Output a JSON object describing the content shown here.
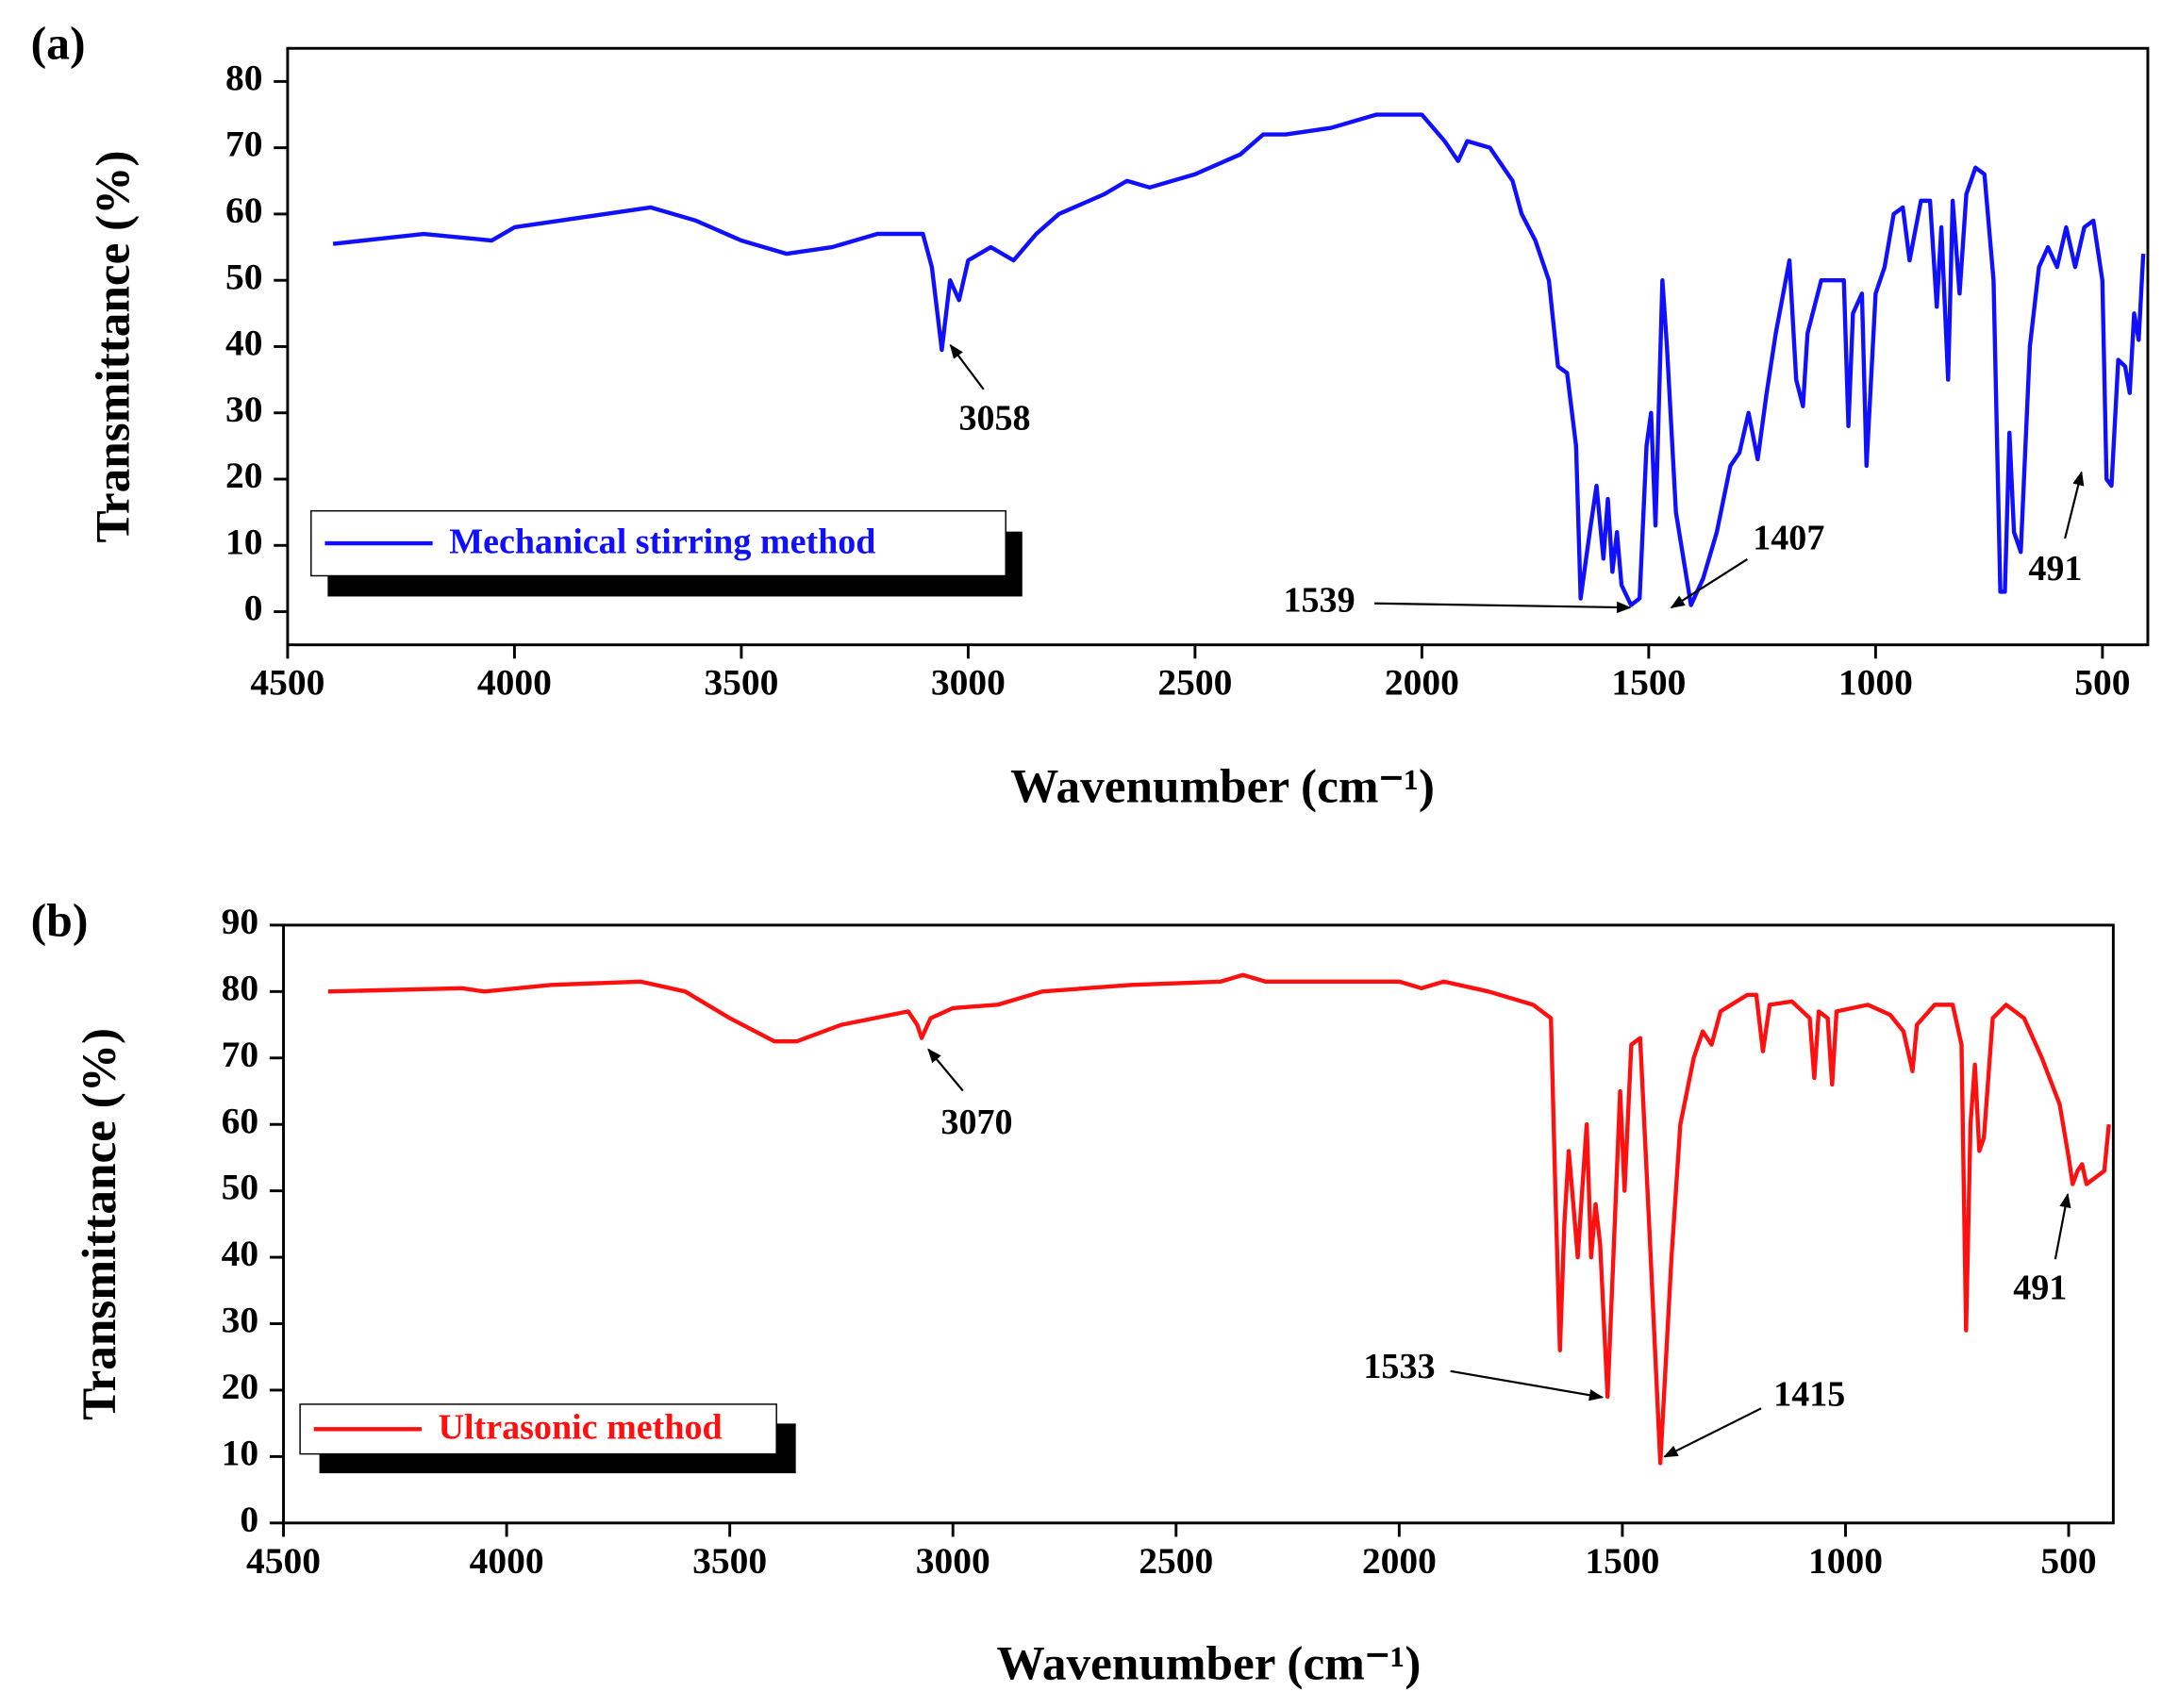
{
  "chart_data": [
    {
      "type": "line",
      "panel_label": "(a)",
      "x_label": "Wavenumber (cm⁻¹)",
      "y_label": "Transmittance (%)",
      "xlim": [
        4500,
        400
      ],
      "ylim": [
        -5,
        85
      ],
      "xticks": [
        4500,
        4000,
        3500,
        3000,
        2500,
        2000,
        1500,
        1000,
        500
      ],
      "yticks": [
        0,
        10,
        20,
        30,
        40,
        50,
        60,
        70,
        80
      ],
      "annotations": [
        "3058",
        "1539",
        "1407",
        "491"
      ],
      "x": [
        4400,
        4200,
        4050,
        4000,
        3800,
        3700,
        3600,
        3500,
        3400,
        3300,
        3200,
        3100,
        3080,
        3058,
        3040,
        3020,
        3000,
        2950,
        2900,
        2850,
        2800,
        2700,
        2650,
        2600,
        2500,
        2400,
        2350,
        2300,
        2200,
        2100,
        2000,
        1950,
        1920,
        1900,
        1850,
        1800,
        1780,
        1750,
        1720,
        1700,
        1680,
        1660,
        1650,
        1630,
        1615,
        1600,
        1590,
        1580,
        1570,
        1560,
        1539,
        1520,
        1505,
        1495,
        1485,
        1470,
        1460,
        1440,
        1407,
        1380,
        1350,
        1320,
        1300,
        1280,
        1260,
        1240,
        1220,
        1190,
        1175,
        1160,
        1150,
        1120,
        1090,
        1070,
        1060,
        1050,
        1030,
        1020,
        1000,
        980,
        960,
        940,
        925,
        900,
        880,
        865,
        855,
        840,
        830,
        815,
        800,
        780,
        760,
        740,
        725,
        715,
        705,
        695,
        680,
        660,
        640,
        620,
        600,
        580,
        560,
        540,
        520,
        500,
        491,
        480,
        465,
        450,
        440,
        430,
        420,
        410
      ],
      "series": [
        {
          "name": "Mechanical stirring method",
          "color": "#1010ff",
          "values": [
            55.5,
            57,
            56,
            58,
            60,
            61,
            59,
            56,
            54,
            55,
            57,
            57,
            52,
            39.5,
            50,
            47,
            53,
            55,
            53,
            57,
            60,
            63,
            65,
            64,
            66,
            69,
            72,
            72,
            73,
            75,
            75,
            71,
            68,
            71,
            70,
            65,
            60,
            56,
            50,
            37,
            36,
            25,
            2,
            12,
            19,
            8,
            17,
            6,
            12,
            4,
            1,
            2,
            25,
            30,
            13,
            50,
            40,
            15,
            1,
            5,
            12,
            22,
            24,
            30,
            23,
            33,
            42,
            53,
            35,
            31,
            42,
            50,
            50,
            50,
            28,
            45,
            48,
            22,
            48,
            52,
            60,
            61,
            53,
            62,
            62,
            46,
            58,
            35,
            62,
            48,
            63,
            67,
            66,
            50,
            3,
            3,
            27,
            12,
            9,
            40,
            52,
            55,
            52,
            58,
            52,
            58,
            59,
            50,
            20,
            19,
            38,
            37,
            33,
            45,
            41,
            54
          ]
        }
      ]
    },
    {
      "type": "line",
      "panel_label": "(b)",
      "x_label": "Wavenumber (cm⁻¹)",
      "y_label": "Transmittance (%)",
      "xlim": [
        4500,
        400
      ],
      "ylim": [
        0,
        90
      ],
      "xticks": [
        4500,
        4000,
        3500,
        3000,
        2500,
        2000,
        1500,
        1000,
        500
      ],
      "yticks": [
        0,
        10,
        20,
        30,
        40,
        50,
        60,
        70,
        80,
        90
      ],
      "annotations": [
        "3070",
        "1533",
        "1415",
        "491"
      ],
      "x": [
        4400,
        4100,
        4050,
        3900,
        3700,
        3600,
        3500,
        3400,
        3350,
        3250,
        3100,
        3080,
        3070,
        3050,
        3000,
        2900,
        2800,
        2600,
        2400,
        2350,
        2300,
        2000,
        1950,
        1900,
        1800,
        1700,
        1660,
        1650,
        1640,
        1630,
        1620,
        1610,
        1600,
        1590,
        1580,
        1570,
        1560,
        1550,
        1533,
        1520,
        1505,
        1495,
        1480,
        1460,
        1440,
        1415,
        1390,
        1370,
        1340,
        1320,
        1300,
        1280,
        1220,
        1200,
        1185,
        1170,
        1120,
        1080,
        1070,
        1060,
        1040,
        1030,
        1020,
        950,
        900,
        870,
        850,
        840,
        800,
        760,
        740,
        730,
        720,
        710,
        700,
        690,
        670,
        640,
        600,
        560,
        520,
        500,
        491,
        480,
        470,
        460,
        440,
        420,
        410
      ],
      "series": [
        {
          "name": "Ultrasonic method",
          "color": "#ff1010",
          "values": [
            80,
            80.5,
            80,
            81,
            81.5,
            80,
            76,
            72.5,
            72.5,
            75,
            77,
            75,
            73,
            76,
            77.5,
            78,
            80,
            81,
            81.5,
            82.5,
            81.5,
            81.5,
            80.5,
            81.5,
            80,
            78,
            76,
            50,
            26,
            45,
            56,
            48,
            40,
            50,
            60,
            40,
            48,
            42,
            19,
            40,
            65,
            50,
            72,
            73,
            45,
            9,
            40,
            60,
            70,
            74,
            72,
            77,
            79.5,
            79.5,
            71,
            78,
            78.5,
            76,
            67,
            77,
            76,
            66,
            77,
            78,
            76.5,
            74,
            68,
            75,
            78,
            78,
            72,
            29,
            60,
            69,
            56,
            58,
            76,
            78,
            76,
            70,
            63,
            55,
            51,
            53,
            54,
            51,
            52,
            53,
            60
          ]
        }
      ]
    }
  ]
}
